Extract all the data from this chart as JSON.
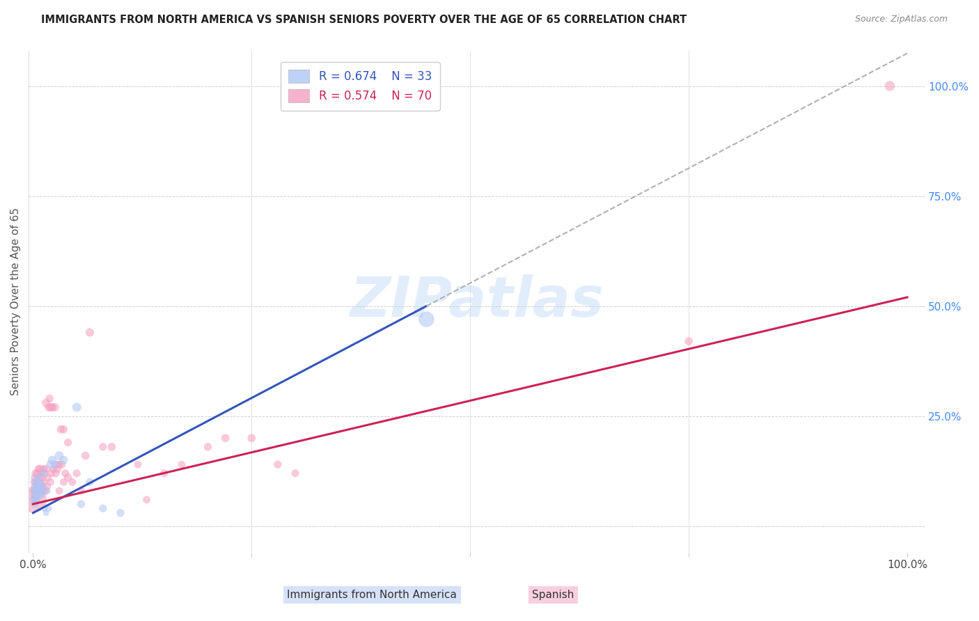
{
  "title": "IMMIGRANTS FROM NORTH AMERICA VS SPANISH SENIORS POVERTY OVER THE AGE OF 65 CORRELATION CHART",
  "source": "Source: ZipAtlas.com",
  "ylabel": "Seniors Poverty Over the Age of 65",
  "xlim": [
    -0.005,
    1.02
  ],
  "ylim": [
    -0.06,
    1.08
  ],
  "background_color": "#ffffff",
  "grid_color": "#d0d0d0",
  "watermark": "ZIPatlas",
  "legend_R1": "R = 0.674",
  "legend_N1": "N = 33",
  "legend_R2": "R = 0.574",
  "legend_N2": "N = 70",
  "blue_color": "#aec6f5",
  "pink_color": "#f5a0c0",
  "blue_line_color": "#3355bb",
  "pink_line_color": "#cc2255",
  "blue_line_x0": 0.0,
  "blue_line_y0": 0.03,
  "blue_line_x1": 0.45,
  "blue_line_y1": 0.5,
  "pink_line_x0": 0.0,
  "pink_line_y0": 0.05,
  "pink_line_x1": 1.0,
  "pink_line_y1": 0.52,
  "blue_scatter_x": [
    0.001,
    0.001,
    0.002,
    0.002,
    0.003,
    0.003,
    0.004,
    0.004,
    0.005,
    0.005,
    0.006,
    0.007,
    0.008,
    0.008,
    0.009,
    0.01,
    0.011,
    0.012,
    0.013,
    0.015,
    0.016,
    0.018,
    0.02,
    0.022,
    0.025,
    0.03,
    0.035,
    0.05,
    0.055,
    0.065,
    0.08,
    0.1,
    0.45
  ],
  "blue_scatter_y": [
    0.06,
    0.08,
    0.05,
    0.09,
    0.07,
    0.1,
    0.06,
    0.08,
    0.09,
    0.11,
    0.07,
    0.09,
    0.08,
    0.1,
    0.07,
    0.09,
    0.08,
    0.12,
    0.04,
    0.03,
    0.08,
    0.04,
    0.14,
    0.15,
    0.14,
    0.16,
    0.15,
    0.27,
    0.05,
    0.1,
    0.04,
    0.03,
    0.47
  ],
  "blue_sizes": [
    60,
    55,
    65,
    50,
    70,
    55,
    60,
    50,
    65,
    55,
    60,
    70,
    55,
    65,
    60,
    70,
    55,
    65,
    40,
    35,
    50,
    40,
    70,
    75,
    70,
    80,
    70,
    80,
    60,
    60,
    60,
    60,
    250
  ],
  "pink_scatter_x": [
    0.001,
    0.001,
    0.001,
    0.002,
    0.002,
    0.002,
    0.003,
    0.003,
    0.003,
    0.004,
    0.004,
    0.005,
    0.005,
    0.006,
    0.006,
    0.007,
    0.007,
    0.008,
    0.008,
    0.009,
    0.009,
    0.01,
    0.01,
    0.011,
    0.012,
    0.012,
    0.013,
    0.014,
    0.015,
    0.015,
    0.016,
    0.017,
    0.018,
    0.019,
    0.02,
    0.02,
    0.021,
    0.022,
    0.023,
    0.025,
    0.026,
    0.027,
    0.028,
    0.03,
    0.03,
    0.032,
    0.033,
    0.035,
    0.035,
    0.037,
    0.04,
    0.04,
    0.045,
    0.05,
    0.055,
    0.06,
    0.065,
    0.08,
    0.09,
    0.12,
    0.13,
    0.15,
    0.17,
    0.2,
    0.22,
    0.25,
    0.28,
    0.3,
    0.75,
    0.98
  ],
  "pink_scatter_y": [
    0.06,
    0.08,
    0.1,
    0.07,
    0.09,
    0.11,
    0.06,
    0.08,
    0.12,
    0.07,
    0.1,
    0.08,
    0.12,
    0.09,
    0.13,
    0.08,
    0.11,
    0.1,
    0.13,
    0.09,
    0.12,
    0.08,
    0.11,
    0.09,
    0.1,
    0.13,
    0.12,
    0.08,
    0.28,
    0.13,
    0.09,
    0.11,
    0.27,
    0.29,
    0.1,
    0.27,
    0.12,
    0.27,
    0.13,
    0.27,
    0.12,
    0.14,
    0.13,
    0.08,
    0.14,
    0.22,
    0.14,
    0.1,
    0.22,
    0.12,
    0.11,
    0.19,
    0.1,
    0.12,
    0.08,
    0.16,
    0.44,
    0.18,
    0.18,
    0.14,
    0.06,
    0.12,
    0.14,
    0.18,
    0.2,
    0.2,
    0.14,
    0.12,
    0.42,
    1.0
  ],
  "pink_sizes": [
    700,
    60,
    50,
    65,
    55,
    60,
    70,
    55,
    65,
    60,
    55,
    65,
    60,
    70,
    55,
    65,
    60,
    55,
    65,
    60,
    55,
    65,
    60,
    55,
    60,
    55,
    65,
    60,
    70,
    65,
    60,
    55,
    65,
    60,
    55,
    70,
    60,
    65,
    55,
    70,
    60,
    55,
    65,
    55,
    60,
    65,
    60,
    55,
    65,
    60,
    65,
    60,
    55,
    60,
    55,
    65,
    70,
    60,
    65,
    55,
    55,
    60,
    55,
    60,
    65,
    65,
    60,
    55,
    65,
    100
  ]
}
